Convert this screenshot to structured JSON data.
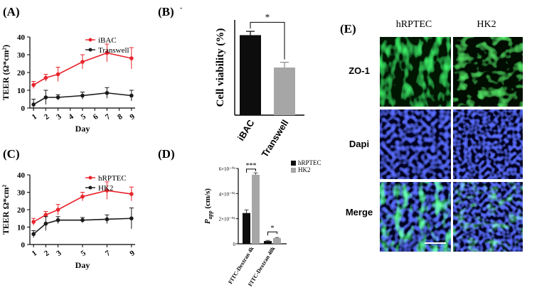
{
  "panels": {
    "A": {
      "label": "(A)"
    },
    "B": {
      "label": "(B)",
      "corner_mark": "-"
    },
    "C": {
      "label": "(C)"
    },
    "D": {
      "label": "(D)"
    },
    "E": {
      "label": "(E)"
    }
  },
  "chart_data": [
    {
      "id": "A",
      "type": "line",
      "title": "",
      "xlabel": "Day",
      "ylabel": "TEER (Ω*cm²)",
      "x_ticks": [
        1,
        2,
        3,
        4,
        5,
        6,
        7,
        8,
        9
      ],
      "y_ticks": [
        0,
        10,
        20,
        30,
        40
      ],
      "xlim": [
        0.7,
        9.3
      ],
      "ylim": [
        0,
        40
      ],
      "legend_position": "top-right",
      "colors": {
        "iBAC": "#e8242b",
        "Transwell": "#1a1a1a"
      },
      "series": [
        {
          "name": "iBAC",
          "x": [
            1,
            2,
            3,
            5,
            7,
            9
          ],
          "y": [
            13,
            17,
            19,
            26,
            31,
            28
          ],
          "err": [
            2,
            2,
            4,
            4,
            5,
            6
          ]
        },
        {
          "name": "Transwell",
          "x": [
            1,
            2,
            3,
            5,
            7,
            9
          ],
          "y": [
            2,
            6,
            6,
            7,
            8.5,
            7
          ],
          "err": [
            3,
            4,
            1.5,
            2,
            3,
            3
          ]
        }
      ]
    },
    {
      "id": "B",
      "type": "bar",
      "title": "",
      "xlabel": "",
      "ylabel": "Cell viability (%)",
      "categories": [
        "iBAC",
        "Transwell"
      ],
      "values": [
        168,
        100
      ],
      "err": [
        8,
        11
      ],
      "colors": [
        "#0d0d0d",
        "#a6a6a6"
      ],
      "ylim": [
        0,
        200
      ],
      "significance": "*"
    },
    {
      "id": "C",
      "type": "line",
      "title": "",
      "xlabel": "Day",
      "ylabel": "TEER Ω*cm²",
      "x_ticks": [
        1,
        2,
        3,
        5,
        7,
        9
      ],
      "y_ticks": [
        0,
        10,
        20,
        30,
        40
      ],
      "xlim": [
        0.7,
        9.3
      ],
      "ylim": [
        0,
        40
      ],
      "legend_position": "top-right",
      "colors": {
        "hRPTEC": "#e8242b",
        "HK2": "#1a1a1a"
      },
      "series": [
        {
          "name": "hRPTEC",
          "x": [
            1,
            2,
            3,
            5,
            7,
            9
          ],
          "y": [
            13,
            17,
            20,
            27.5,
            31,
            29
          ],
          "err": [
            2,
            2,
            3,
            2.5,
            5,
            4
          ]
        },
        {
          "name": "HK2",
          "x": [
            1,
            2,
            3,
            5,
            7,
            9
          ],
          "y": [
            6,
            12,
            14,
            14,
            14.5,
            15
          ],
          "err": [
            2,
            4,
            2,
            1.5,
            2.5,
            6
          ]
        }
      ]
    },
    {
      "id": "D",
      "type": "bar",
      "title": "",
      "xlabel": "",
      "ylabel": "P_app (cm/s)",
      "ylabel_main": "P",
      "ylabel_sub": "app",
      "ylabel_unit": " (cm/s)",
      "categories": [
        "FITC-Dextran 4k",
        "FITC-Dextran 40k"
      ],
      "y_ticks": [
        0,
        2e-06,
        4e-06,
        6e-06
      ],
      "y_tick_labels": [
        "0",
        "2×10⁻⁰⁶",
        "4×10⁻⁰⁶",
        "6×10⁻⁰⁶"
      ],
      "ylim": [
        0,
        6e-06
      ],
      "legend_position": "top-right",
      "colors": {
        "hRPTEC": "#0d0d0d",
        "HK2": "#a6a6a6"
      },
      "series": [
        {
          "name": "hRPTEC",
          "values": [
            2.45e-06,
            2.2e-07
          ],
          "err": [
            2.5e-07,
            5e-08
          ]
        },
        {
          "name": "HK2",
          "values": [
            5.5e-06,
            4.5e-07
          ],
          "err": [
            1.5e-07,
            5e-08
          ]
        }
      ],
      "significance": [
        "***",
        "*"
      ]
    }
  ],
  "micrographs": {
    "columns": [
      "hRPTEC",
      "HK2"
    ],
    "rows": [
      "ZO-1",
      "Dapi",
      "Merge"
    ]
  }
}
